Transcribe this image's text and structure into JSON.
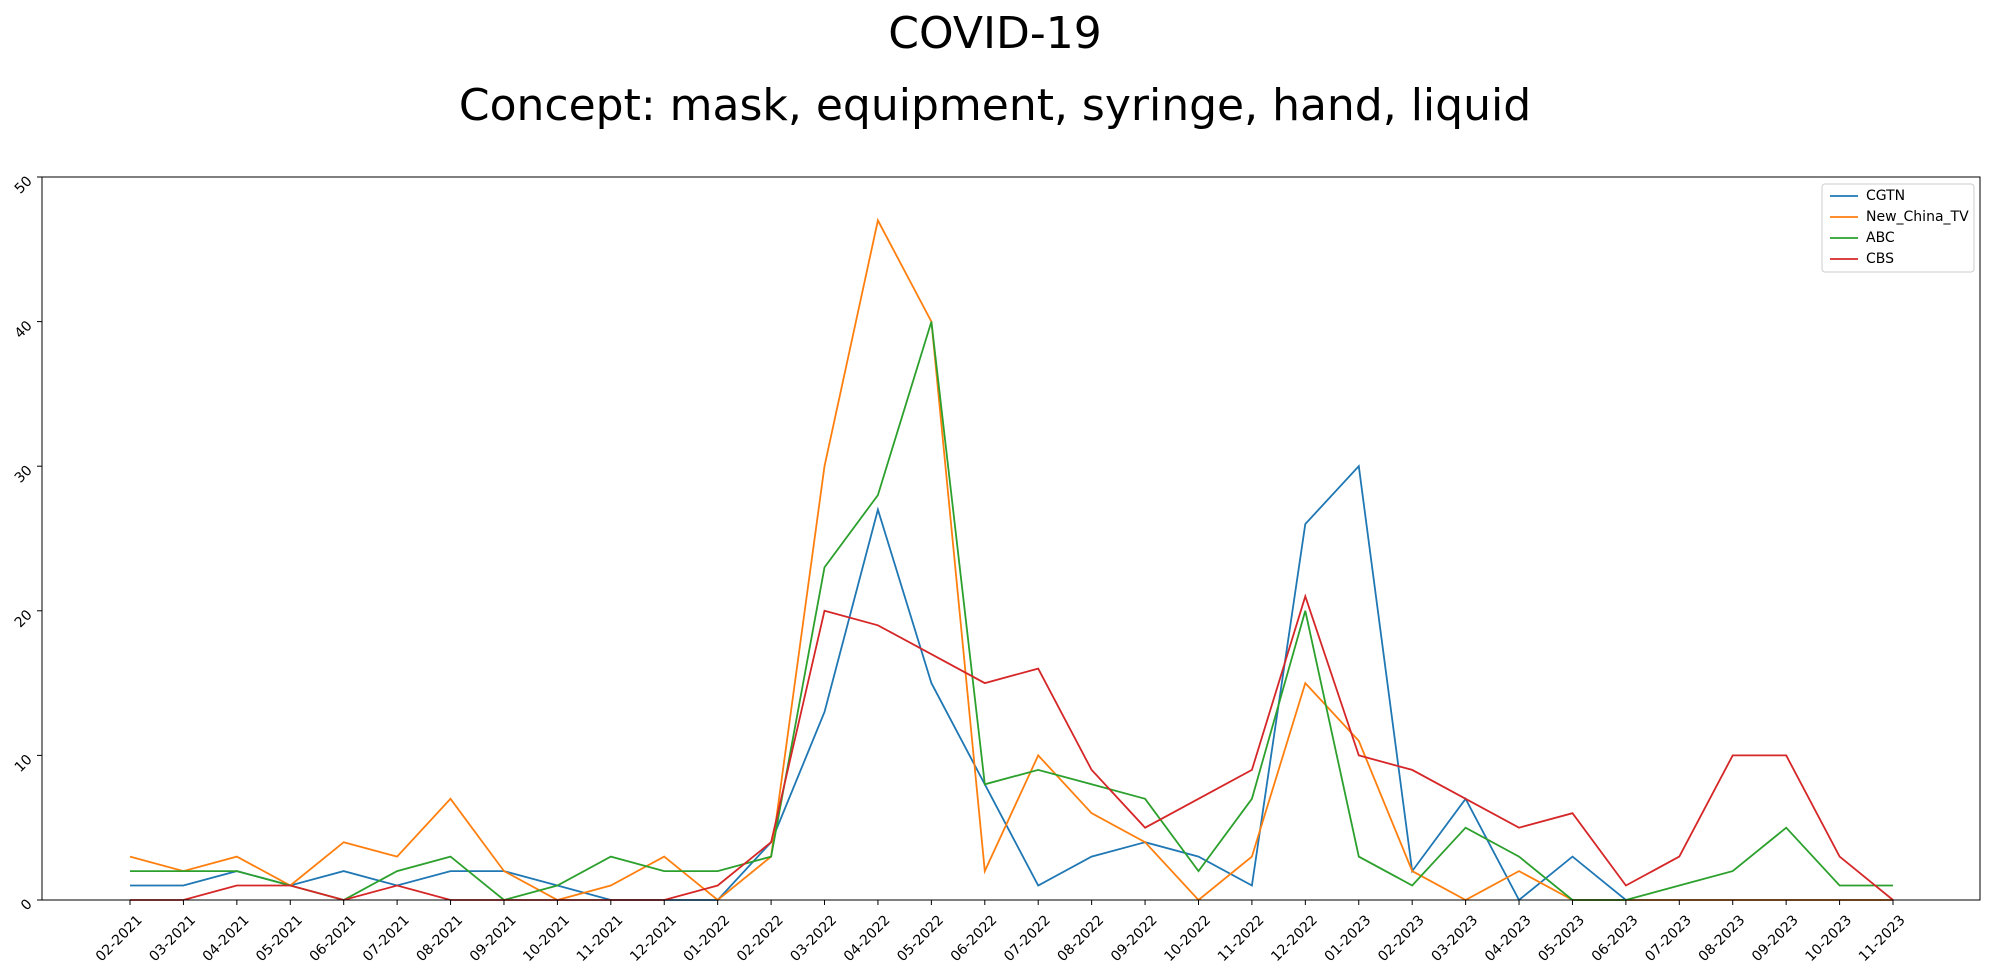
{
  "chart_data": {
    "type": "line",
    "title": "COVID-19",
    "subtitle": "Concept: mask, equipment, syringe, hand, liquid",
    "xlabel": "",
    "ylabel": "",
    "ylim": [
      0,
      50
    ],
    "yticks": [
      0,
      10,
      20,
      30,
      40,
      50
    ],
    "grid": false,
    "legend_position": "top-right",
    "categories": [
      "02-2021",
      "03-2021",
      "04-2021",
      "05-2021",
      "06-2021",
      "07-2021",
      "08-2021",
      "09-2021",
      "10-2021",
      "11-2021",
      "12-2021",
      "01-2022",
      "02-2022",
      "03-2022",
      "04-2022",
      "05-2022",
      "06-2022",
      "07-2022",
      "08-2022",
      "09-2022",
      "10-2022",
      "11-2022",
      "12-2022",
      "01-2023",
      "02-2023",
      "03-2023",
      "04-2023",
      "05-2023",
      "06-2023",
      "07-2023",
      "08-2023",
      "09-2023",
      "10-2023",
      "11-2023"
    ],
    "series": [
      {
        "name": "CGTN",
        "color": "#1f77b4",
        "values": [
          1,
          1,
          2,
          1,
          2,
          1,
          2,
          2,
          1,
          0,
          0,
          0,
          4,
          13,
          27,
          15,
          8,
          1,
          3,
          4,
          3,
          1,
          26,
          30,
          2,
          7,
          0,
          3,
          0,
          0,
          0,
          0,
          0,
          0
        ]
      },
      {
        "name": "New_China_TV",
        "color": "#ff7f0e",
        "values": [
          3,
          2,
          3,
          1,
          4,
          3,
          7,
          2,
          0,
          1,
          3,
          0,
          3,
          30,
          47,
          40,
          2,
          10,
          6,
          4,
          0,
          3,
          15,
          11,
          2,
          0,
          2,
          0,
          0,
          0,
          0,
          0,
          0,
          0
        ]
      },
      {
        "name": "ABC",
        "color": "#2ca02c",
        "values": [
          2,
          2,
          2,
          1,
          0,
          2,
          3,
          0,
          1,
          3,
          2,
          2,
          3,
          23,
          28,
          40,
          8,
          9,
          8,
          7,
          2,
          7,
          20,
          3,
          1,
          5,
          3,
          0,
          0,
          1,
          2,
          5,
          1,
          1
        ]
      },
      {
        "name": "CBS",
        "color": "#d62728",
        "values": [
          0,
          0,
          1,
          1,
          0,
          1,
          0,
          0,
          0,
          0,
          0,
          1,
          4,
          20,
          19,
          17,
          15,
          16,
          9,
          5,
          7,
          9,
          21,
          10,
          9,
          7,
          5,
          6,
          1,
          3,
          10,
          10,
          3,
          0
        ]
      }
    ]
  }
}
